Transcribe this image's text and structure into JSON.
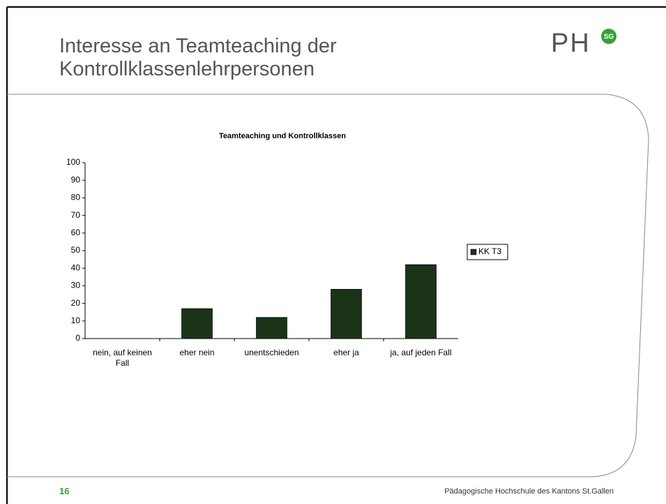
{
  "header": {
    "title": "Interesse an Teamteaching der Kontrollklassenlehrpersonen",
    "logo": "PH",
    "logo_badge": "SG"
  },
  "chart_data": {
    "type": "bar",
    "title": "Teamteaching und Kontrollklassen",
    "categories": [
      "nein, auf keinen Fall",
      "eher nein",
      "unentschieden",
      "eher ja",
      "ja, auf jeden Fall"
    ],
    "series": [
      {
        "name": "KK T3",
        "color": "#1a3319",
        "values": [
          0,
          17,
          12,
          28,
          42
        ]
      }
    ],
    "ylim": [
      0,
      100
    ],
    "yticks": [
      0,
      10,
      20,
      30,
      40,
      50,
      60,
      70,
      80,
      90,
      100
    ],
    "grid": false,
    "legend": "right"
  },
  "footer": {
    "page": "16",
    "text": "Pädagogische Hochschule des Kantons St.Gallen"
  }
}
